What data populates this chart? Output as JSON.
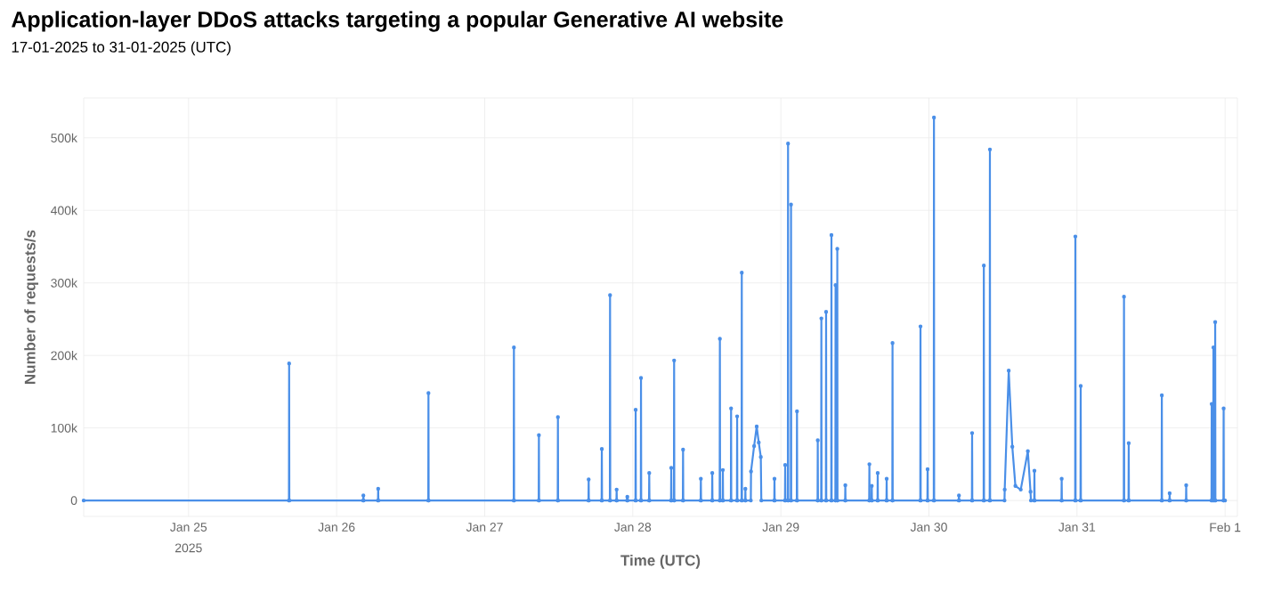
{
  "chart_data": {
    "type": "line",
    "title": "Application-layer DDoS attacks targeting a popular Generative AI website",
    "subtitle": "17-01-2025 to 31-01-2025 (UTC)",
    "xlabel": "Time (UTC)",
    "ylabel": "Number of requests/s",
    "annotations": [
      "2025"
    ],
    "color": "#4a8fe8",
    "grid": true,
    "marker": "circle",
    "line_style": "solid",
    "xlim": [
      "2025-01-24T07:00",
      "2025-02-01T02:00"
    ],
    "xticks": [
      {
        "value": "2025-01-25",
        "label": "Jan 25"
      },
      {
        "value": "2025-01-26",
        "label": "Jan 26"
      },
      {
        "value": "2025-01-27",
        "label": "Jan 27"
      },
      {
        "value": "2025-01-28",
        "label": "Jan 28"
      },
      {
        "value": "2025-01-29",
        "label": "Jan 29"
      },
      {
        "value": "2025-01-30",
        "label": "Jan 30"
      },
      {
        "value": "2025-01-31",
        "label": "Jan 31"
      },
      {
        "value": "2025-02-01",
        "label": "Feb 1"
      }
    ],
    "ylim": [
      -22000,
      555000
    ],
    "yticks": [
      0,
      {
        "value": 100000,
        "label": "100k"
      },
      {
        "value": 200000,
        "label": "200k"
      },
      {
        "value": 300000,
        "label": "300k"
      },
      {
        "value": 400000,
        "label": "400k"
      },
      {
        "value": 500000,
        "label": "500k"
      }
    ],
    "x": [
      "2025-01-24T07:00",
      "2025-01-25T16:16",
      "2025-01-25T16:18",
      "2025-01-25T16:20",
      "2025-01-26T04:18",
      "2025-01-26T04:20",
      "2025-01-26T04:22",
      "2025-01-26T06:42",
      "2025-01-26T06:44",
      "2025-01-26T06:46",
      "2025-01-26T14:51",
      "2025-01-26T14:53",
      "2025-01-26T14:55",
      "2025-01-27T04:42",
      "2025-01-27T04:44",
      "2025-01-27T04:46",
      "2025-01-27T08:45",
      "2025-01-27T08:47",
      "2025-01-27T08:49",
      "2025-01-27T11:50",
      "2025-01-27T11:52",
      "2025-01-27T11:54",
      "2025-01-27T16:49",
      "2025-01-27T16:51",
      "2025-01-27T16:53",
      "2025-01-27T18:57",
      "2025-01-27T18:59",
      "2025-01-27T19:01",
      "2025-01-27T20:17",
      "2025-01-27T20:19",
      "2025-01-27T20:21",
      "2025-01-27T21:21",
      "2025-01-27T21:23",
      "2025-01-27T21:25",
      "2025-01-27T23:05",
      "2025-01-27T23:07",
      "2025-01-27T23:09",
      "2025-01-28T00:26",
      "2025-01-28T00:28",
      "2025-01-28T00:30",
      "2025-01-28T01:18",
      "2025-01-28T01:20",
      "2025-01-28T01:22",
      "2025-01-28T02:38",
      "2025-01-28T02:40",
      "2025-01-28T02:42",
      "2025-01-28T06:12",
      "2025-01-28T06:14",
      "2025-01-28T06:16",
      "2025-01-28T06:40",
      "2025-01-28T06:42",
      "2025-01-28T06:44",
      "2025-01-28T08:07",
      "2025-01-28T08:09",
      "2025-01-28T08:11",
      "2025-01-28T11:00",
      "2025-01-28T11:02",
      "2025-01-28T11:04",
      "2025-01-28T12:51",
      "2025-01-28T12:53",
      "2025-01-28T12:55",
      "2025-01-28T14:05",
      "2025-01-28T14:07",
      "2025-01-28T14:09",
      "2025-01-28T14:34",
      "2025-01-28T14:36",
      "2025-01-28T14:38",
      "2025-01-28T15:54",
      "2025-01-28T15:56",
      "2025-01-28T15:58",
      "2025-01-28T16:53",
      "2025-01-28T16:55",
      "2025-01-28T16:57",
      "2025-01-28T17:38",
      "2025-01-28T17:40",
      "2025-01-28T17:42",
      "2025-01-28T18:13",
      "2025-01-28T18:15",
      "2025-01-28T18:17",
      "2025-01-28T19:08",
      "2025-01-28T19:10",
      "2025-01-28T19:40",
      "2025-01-28T20:05",
      "2025-01-28T20:25",
      "2025-01-28T20:45",
      "2025-01-28T20:50",
      "2025-01-28T22:56",
      "2025-01-28T22:58",
      "2025-01-28T23:00",
      "2025-01-29T00:40",
      "2025-01-29T00:42",
      "2025-01-29T00:44",
      "2025-01-29T01:08",
      "2025-01-29T01:10",
      "2025-01-29T01:12",
      "2025-01-29T01:37",
      "2025-01-29T01:39",
      "2025-01-29T01:41",
      "2025-01-29T02:35",
      "2025-01-29T02:37",
      "2025-01-29T02:39",
      "2025-01-29T05:57",
      "2025-01-29T05:59",
      "2025-01-29T06:01",
      "2025-01-29T06:32",
      "2025-01-29T06:34",
      "2025-01-29T06:36",
      "2025-01-29T07:18",
      "2025-01-29T07:20",
      "2025-01-29T07:22",
      "2025-01-29T08:10",
      "2025-01-29T08:12",
      "2025-01-29T08:14",
      "2025-01-29T08:50",
      "2025-01-29T08:52",
      "2025-01-29T08:54",
      "2025-01-29T09:07",
      "2025-01-29T09:09",
      "2025-01-29T09:11",
      "2025-01-29T10:25",
      "2025-01-29T10:27",
      "2025-01-29T10:29",
      "2025-01-29T14:19",
      "2025-01-29T14:21",
      "2025-01-29T14:23",
      "2025-01-29T14:42",
      "2025-01-29T14:44",
      "2025-01-29T14:46",
      "2025-01-29T15:40",
      "2025-01-29T15:42",
      "2025-01-29T15:44",
      "2025-01-29T17:07",
      "2025-01-29T17:09",
      "2025-01-29T17:11",
      "2025-01-29T18:04",
      "2025-01-29T18:06",
      "2025-01-29T18:08",
      "2025-01-29T22:36",
      "2025-01-29T22:38",
      "2025-01-29T22:40",
      "2025-01-29T23:45",
      "2025-01-29T23:47",
      "2025-01-29T23:49",
      "2025-01-30T00:47",
      "2025-01-30T00:49",
      "2025-01-30T00:51",
      "2025-01-30T04:50",
      "2025-01-30T04:52",
      "2025-01-30T04:54",
      "2025-01-30T06:58",
      "2025-01-30T07:00",
      "2025-01-30T07:02",
      "2025-01-30T08:52",
      "2025-01-30T08:54",
      "2025-01-30T08:56",
      "2025-01-30T09:51",
      "2025-01-30T09:53",
      "2025-01-30T09:55",
      "2025-01-30T12:15",
      "2025-01-30T12:17",
      "2025-01-30T12:56",
      "2025-01-30T13:31",
      "2025-01-30T14:01",
      "2025-01-30T14:53",
      "2025-01-30T16:02",
      "2025-01-30T16:28",
      "2025-01-30T16:32",
      "2025-01-30T17:04",
      "2025-01-30T17:06",
      "2025-01-30T17:08",
      "2025-01-30T21:29",
      "2025-01-30T21:31",
      "2025-01-30T21:33",
      "2025-01-30T23:42",
      "2025-01-30T23:44",
      "2025-01-30T23:46",
      "2025-01-31T00:34",
      "2025-01-31T00:36",
      "2025-01-31T00:38",
      "2025-01-31T07:35",
      "2025-01-31T07:37",
      "2025-01-31T07:39",
      "2025-01-31T08:21",
      "2025-01-31T08:23",
      "2025-01-31T08:25",
      "2025-01-31T13:43",
      "2025-01-31T13:45",
      "2025-01-31T13:47",
      "2025-01-31T14:59",
      "2025-01-31T15:01",
      "2025-01-31T15:03",
      "2025-01-31T17:40",
      "2025-01-31T17:42",
      "2025-01-31T17:44",
      "2025-01-31T21:48",
      "2025-01-31T21:50",
      "2025-01-31T21:52",
      "2025-01-31T22:05",
      "2025-01-31T22:07",
      "2025-01-31T22:09",
      "2025-01-31T22:22",
      "2025-01-31T22:24",
      "2025-01-31T22:26",
      "2025-01-31T23:44",
      "2025-01-31T23:46",
      "2025-01-31T23:48",
      "2025-02-01T00:00"
    ],
    "values": [
      0,
      0,
      189000,
      0,
      0,
      7000,
      0,
      0,
      16000,
      0,
      0,
      148000,
      0,
      0,
      211000,
      0,
      0,
      90000,
      0,
      0,
      115000,
      0,
      0,
      29000,
      0,
      0,
      71000,
      0,
      0,
      283000,
      0,
      0,
      15000,
      0,
      0,
      5000,
      0,
      0,
      125000,
      0,
      0,
      169000,
      0,
      0,
      38000,
      0,
      0,
      45000,
      0,
      0,
      193000,
      0,
      0,
      70000,
      0,
      0,
      30000,
      0,
      0,
      38000,
      0,
      0,
      223000,
      0,
      0,
      42000,
      0,
      0,
      127000,
      0,
      0,
      116000,
      0,
      0,
      314000,
      0,
      0,
      16000,
      0,
      0,
      40000,
      75000,
      102000,
      80000,
      60000,
      0,
      0,
      30000,
      0,
      0,
      49000,
      0,
      0,
      492000,
      0,
      0,
      408000,
      0,
      0,
      123000,
      0,
      0,
      83000,
      0,
      0,
      251000,
      0,
      0,
      260000,
      0,
      0,
      366000,
      0,
      0,
      297000,
      0,
      0,
      347000,
      0,
      0,
      21000,
      0,
      0,
      50000,
      0,
      0,
      20000,
      0,
      0,
      38000,
      0,
      0,
      30000,
      0,
      0,
      217000,
      0,
      0,
      240000,
      0,
      0,
      43000,
      0,
      0,
      528000,
      0,
      0,
      7000,
      0,
      0,
      93000,
      0,
      0,
      324000,
      0,
      0,
      484000,
      0,
      0,
      15000,
      179000,
      74000,
      20000,
      15000,
      68000,
      12000,
      0,
      0,
      41000,
      0,
      0,
      30000,
      0,
      0,
      364000,
      0,
      0,
      158000,
      0,
      0,
      281000,
      0,
      0,
      79000,
      0,
      0,
      145000,
      0,
      0,
      10000,
      0,
      0,
      21000,
      0,
      0,
      133000,
      0,
      0,
      211000,
      0,
      0,
      246000,
      0,
      0,
      127000,
      0,
      0
    ]
  }
}
